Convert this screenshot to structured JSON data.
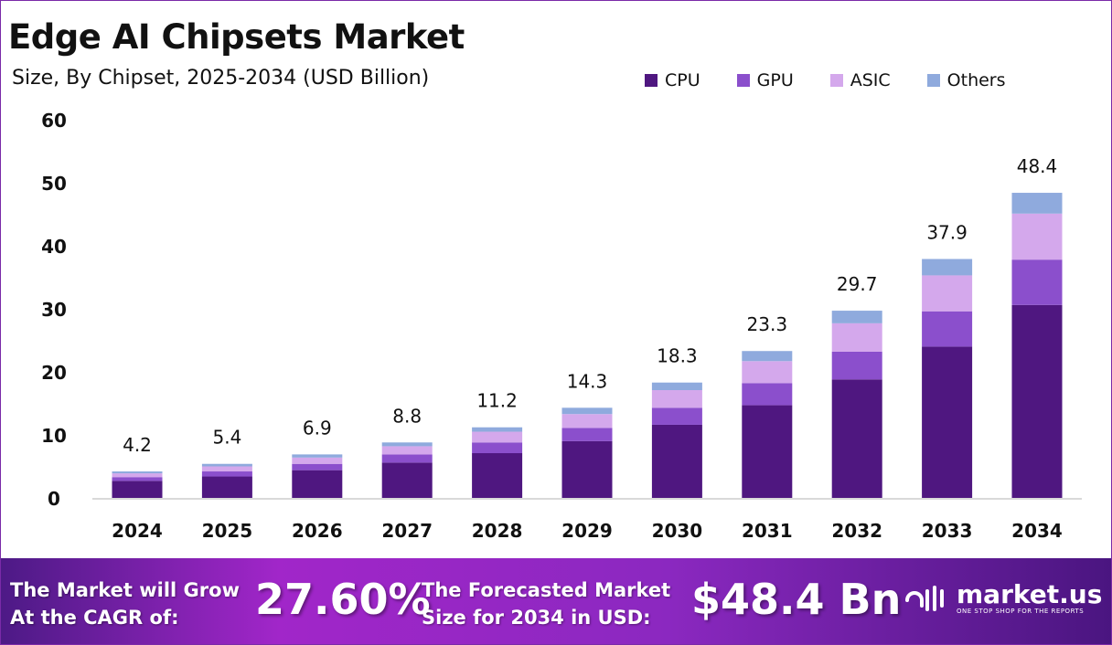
{
  "chart_data": {
    "type": "bar",
    "stacked": true,
    "title": "Edge AI Chipsets Market",
    "subtitle": "Size, By Chipset, 2025-2034 (USD Billion)",
    "categories": [
      "2024",
      "2025",
      "2026",
      "2027",
      "2028",
      "2029",
      "2030",
      "2031",
      "2032",
      "2033",
      "2034"
    ],
    "series": [
      {
        "name": "CPU",
        "color": "#4f1780",
        "values": [
          2.7,
          3.4,
          4.4,
          5.6,
          7.1,
          9.0,
          11.6,
          14.7,
          18.8,
          24.0,
          30.6
        ]
      },
      {
        "name": "GPU",
        "color": "#8b4fcc",
        "values": [
          0.6,
          0.8,
          1.0,
          1.3,
          1.7,
          2.1,
          2.7,
          3.5,
          4.4,
          5.6,
          7.2
        ]
      },
      {
        "name": "ASIC",
        "color": "#d4a8ec",
        "values": [
          0.6,
          0.8,
          1.0,
          1.3,
          1.7,
          2.2,
          2.8,
          3.5,
          4.5,
          5.7,
          7.3
        ]
      },
      {
        "name": "Others",
        "color": "#8faadd",
        "values": [
          0.3,
          0.4,
          0.5,
          0.6,
          0.7,
          1.0,
          1.2,
          1.6,
          2.0,
          2.6,
          3.3
        ]
      }
    ],
    "totals": [
      "4.2",
      "5.4",
      "6.9",
      "8.8",
      "11.2",
      "14.3",
      "18.3",
      "23.3",
      "29.7",
      "37.9",
      "48.4"
    ],
    "ylim": [
      0,
      60
    ],
    "yticks": [
      "0",
      "10",
      "20",
      "30",
      "40",
      "50",
      "60"
    ],
    "grid": false,
    "legend": "top-right"
  },
  "footer": {
    "cagr_label_1": "The Market will Grow",
    "cagr_label_2": "At the CAGR of:",
    "cagr_value": "27.60%",
    "forecast_label_1": "The Forecasted Market",
    "forecast_label_2": "Size for 2034 in USD:",
    "forecast_value": "$48.4 Bn",
    "brand_name": "market.us",
    "brand_tagline": "ONE STOP SHOP FOR THE REPORTS"
  }
}
